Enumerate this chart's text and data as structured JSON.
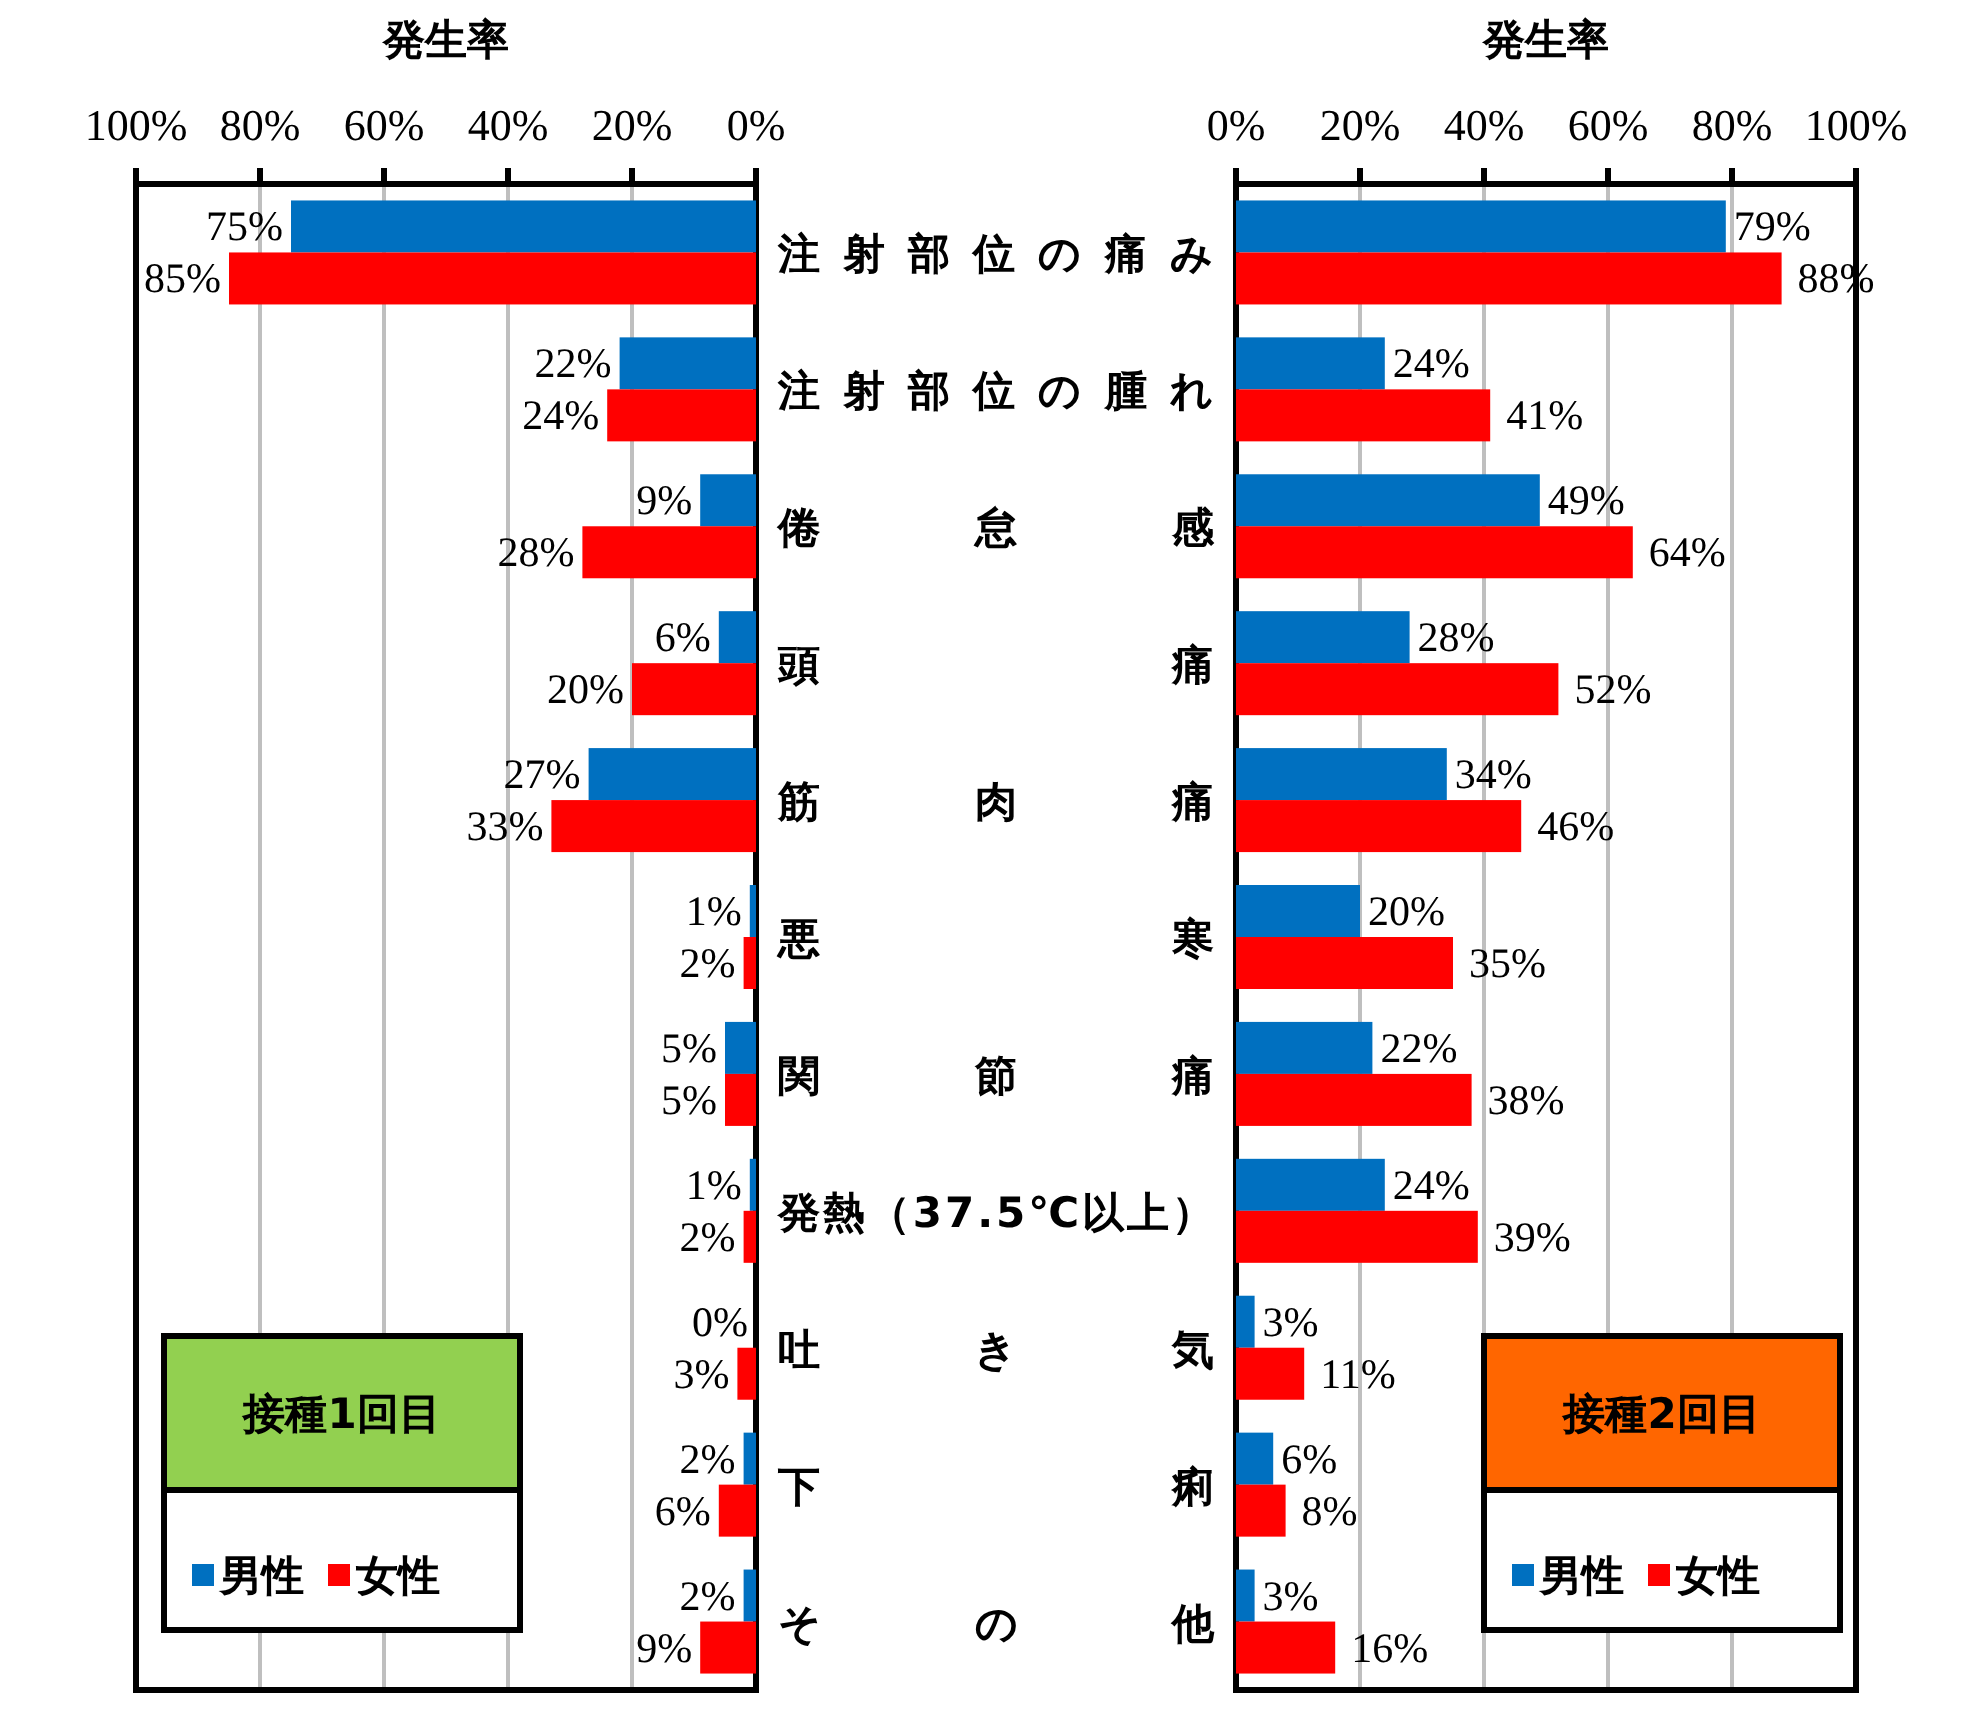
{
  "chart_data": [
    {
      "type": "bar",
      "orientation": "horizontal",
      "title": "接種1回目",
      "xlabel": "発生率",
      "legend": "bottom left",
      "grid": "x",
      "categories": [
        "注射部位の痛み",
        "注射部位の腫れ",
        "倦怠感",
        "頭痛",
        "筋肉痛",
        "悪寒",
        "関節痛",
        "発熱（37.5℃以上）",
        "吐き気",
        "下痢",
        "その他"
      ],
      "xlim": [
        100,
        0
      ],
      "xticks": [
        {
          "value": 100,
          "label": "100%"
        },
        {
          "value": 80,
          "label": "80%"
        },
        {
          "value": 60,
          "label": "60%"
        },
        {
          "value": 40,
          "label": "40%"
        },
        {
          "value": 20,
          "label": "20%"
        },
        {
          "value": 0,
          "label": "0%"
        }
      ],
      "series": [
        {
          "name": "男性",
          "color": "#0070c0",
          "values": [
            75,
            22,
            9,
            6,
            27,
            1,
            5,
            1,
            0,
            2,
            2
          ],
          "value_labels": [
            "75%",
            "22%",
            "9%",
            "6%",
            "27%",
            "1%",
            "5%",
            "1%",
            "0%",
            "2%",
            "2%"
          ]
        },
        {
          "name": "女性",
          "color": "#ff0000",
          "values": [
            85,
            24,
            28,
            20,
            33,
            2,
            5,
            2,
            3,
            6,
            9
          ],
          "value_labels": [
            "85%",
            "24%",
            "28%",
            "20%",
            "33%",
            "2%",
            "5%",
            "2%",
            "3%",
            "6%",
            "9%"
          ]
        }
      ]
    },
    {
      "type": "bar",
      "orientation": "horizontal",
      "title": "接種2回目",
      "xlabel": "発生率",
      "legend": "bottom right",
      "grid": "x",
      "tick_labels": "x",
      "categories": [
        "注射部位の痛み",
        "注射部位の腫れ",
        "倦怠感",
        "頭痛",
        "筋肉痛",
        "悪寒",
        "関節痛",
        "発熱（37.5℃以上）",
        "吐き気",
        "下痢",
        "その他"
      ],
      "xlim": [
        0,
        100
      ],
      "xticks": [
        {
          "value": 0,
          "label": "0%"
        },
        {
          "value": 20,
          "label": "20%"
        },
        {
          "value": 40,
          "label": "40%"
        },
        {
          "value": 60,
          "label": "60%"
        },
        {
          "value": 80,
          "label": "80%"
        },
        {
          "value": 100,
          "label": "100%"
        }
      ],
      "series": [
        {
          "name": "男性",
          "color": "#0070c0",
          "values": [
            79,
            24,
            49,
            28,
            34,
            20,
            22,
            24,
            3,
            6,
            3
          ],
          "value_labels": [
            "79%",
            "24%",
            "49%",
            "28%",
            "34%",
            "20%",
            "22%",
            "24%",
            "3%",
            "6%",
            "3%"
          ]
        },
        {
          "name": "女性",
          "color": "#ff0000",
          "values": [
            88,
            41,
            64,
            52,
            46,
            35,
            38,
            39,
            11,
            8,
            16
          ],
          "value_labels": [
            "88%",
            "41%",
            "64%",
            "52%",
            "46%",
            "35%",
            "38%",
            "39%",
            "11%",
            "8%",
            "16%"
          ]
        }
      ]
    }
  ]
}
